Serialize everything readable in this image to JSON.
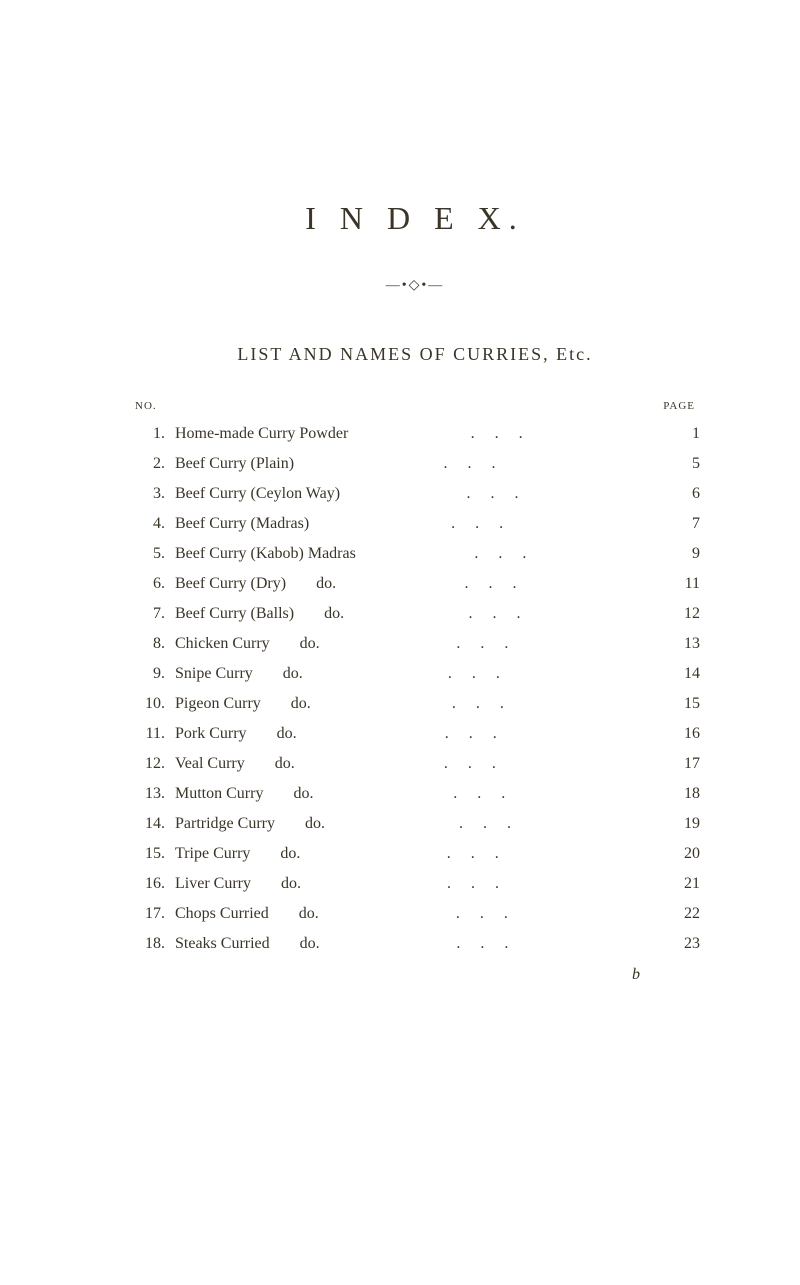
{
  "title": "I N D E X.",
  "ornament": "—•◇•—",
  "section_heading": "LIST AND NAMES OF CURRIES, Etc.",
  "headers": {
    "no": "NO.",
    "page": "PAGE"
  },
  "rows": [
    {
      "no": "1.",
      "name": "Home-made Curry Powder",
      "variant": "",
      "page": "1"
    },
    {
      "no": "2.",
      "name": "Beef Curry (Plain)",
      "variant": "",
      "page": "5"
    },
    {
      "no": "3.",
      "name": "Beef Curry (Ceylon Way)",
      "variant": "",
      "page": "6"
    },
    {
      "no": "4.",
      "name": "Beef Curry (Madras)",
      "variant": "",
      "page": "7"
    },
    {
      "no": "5.",
      "name": "Beef Curry (Kabob) Madras",
      "variant": "",
      "page": "9"
    },
    {
      "no": "6.",
      "name": "Beef Curry (Dry)",
      "variant": "do.",
      "page": "11"
    },
    {
      "no": "7.",
      "name": "Beef Curry (Balls)",
      "variant": "do.",
      "page": "12"
    },
    {
      "no": "8.",
      "name": "Chicken Curry",
      "variant": "do.",
      "page": "13"
    },
    {
      "no": "9.",
      "name": "Snipe Curry",
      "variant": "do.",
      "page": "14"
    },
    {
      "no": "10.",
      "name": "Pigeon Curry",
      "variant": "do.",
      "page": "15"
    },
    {
      "no": "11.",
      "name": "Pork Curry",
      "variant": "do.",
      "page": "16"
    },
    {
      "no": "12.",
      "name": "Veal Curry",
      "variant": "do.",
      "page": "17"
    },
    {
      "no": "13.",
      "name": "Mutton Curry",
      "variant": "do.",
      "page": "18"
    },
    {
      "no": "14.",
      "name": "Partridge Curry",
      "variant": "do.",
      "page": "19"
    },
    {
      "no": "15.",
      "name": "Tripe Curry",
      "variant": "do.",
      "page": "20"
    },
    {
      "no": "16.",
      "name": "Liver Curry",
      "variant": "do.",
      "page": "21"
    },
    {
      "no": "17.",
      "name": "Chops Curried",
      "variant": "do.",
      "page": "22"
    },
    {
      "no": "18.",
      "name": "Steaks Curried",
      "variant": "do.",
      "page": "23"
    }
  ],
  "footer_mark": "b",
  "dots": "...",
  "colors": {
    "background": "#ffffff",
    "text": "#3a3528"
  }
}
